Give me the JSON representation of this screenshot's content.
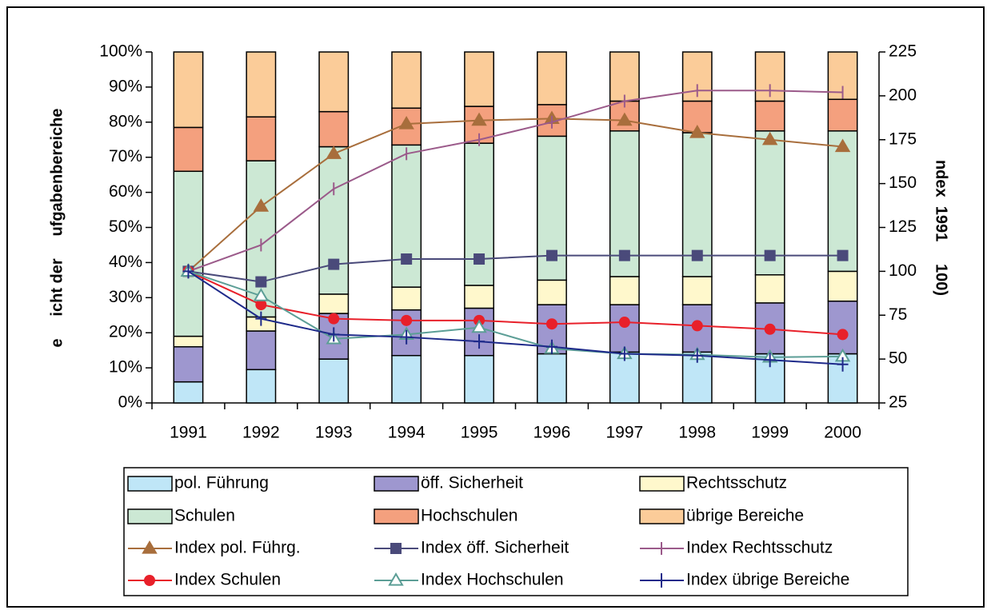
{
  "chart_data": {
    "type": "bar",
    "stacked": true,
    "y_label": "e     icht der     ufgabenbereiche",
    "y2_label": "ndex  1991     100)",
    "categories": [
      "1991",
      "1992",
      "1993",
      "1994",
      "1995",
      "1996",
      "1997",
      "1998",
      "1999",
      "2000"
    ],
    "ylim": [
      0,
      100
    ],
    "yticks": [
      {
        "value": 0,
        "label": "0%"
      },
      {
        "value": 10,
        "label": "10%"
      },
      {
        "value": 20,
        "label": "20%"
      },
      {
        "value": 30,
        "label": "30%"
      },
      {
        "value": 40,
        "label": "40%"
      },
      {
        "value": 50,
        "label": "50%"
      },
      {
        "value": 60,
        "label": "60%"
      },
      {
        "value": 70,
        "label": "70%"
      },
      {
        "value": 80,
        "label": "80%"
      },
      {
        "value": 90,
        "label": "90%"
      },
      {
        "value": 100,
        "label": "100%"
      }
    ],
    "y2lim": [
      25,
      225
    ],
    "y2ticks": [
      25,
      50,
      75,
      100,
      125,
      150,
      175,
      200,
      225
    ],
    "series": [
      {
        "name": "pol. Führung",
        "type": "bar",
        "color": "#bfe6f7",
        "values": [
          6,
          9.5,
          12.5,
          13.5,
          13.5,
          14,
          14.5,
          14.5,
          14,
          14
        ]
      },
      {
        "name": "öff. Sicherheit",
        "type": "bar",
        "color": "#9e97cf",
        "values": [
          10,
          11,
          13,
          13,
          13.5,
          14,
          13.5,
          13.5,
          14.5,
          15
        ]
      },
      {
        "name": "Rechtsschutz",
        "type": "bar",
        "color": "#fff8cc",
        "values": [
          3,
          4,
          5.5,
          6.5,
          6.5,
          7,
          8,
          8,
          8,
          8.5
        ]
      },
      {
        "name": "Schulen",
        "type": "bar",
        "color": "#cce8d4",
        "values": [
          47,
          44.5,
          42,
          40.5,
          40.5,
          41,
          41.5,
          41,
          41,
          40
        ]
      },
      {
        "name": "Hochschulen",
        "type": "bar",
        "color": "#f4a07e",
        "values": [
          12.5,
          12.5,
          10,
          10.5,
          10.5,
          9,
          8.5,
          9,
          8.5,
          9
        ]
      },
      {
        "name": "übrige Bereiche",
        "type": "bar",
        "color": "#fbcc99",
        "values": [
          21.5,
          18.5,
          17,
          16,
          15.5,
          15,
          14,
          14,
          14,
          13.5
        ]
      },
      {
        "name": "Index pol. Führg.",
        "type": "line",
        "axis": "y2",
        "marker": "triangle",
        "color": "#a86e3c",
        "values": [
          100,
          137,
          167,
          184,
          186,
          187,
          186,
          179,
          175,
          171
        ]
      },
      {
        "name": "Index öff. Sicherheit",
        "type": "line",
        "axis": "y2",
        "marker": "square",
        "color": "#4a4a7a",
        "values": [
          100,
          94,
          104,
          107,
          107,
          109,
          109,
          109,
          109,
          109
        ]
      },
      {
        "name": "Index Rechtsschutz",
        "type": "line",
        "axis": "y2",
        "marker": "dash",
        "color": "#9b5a8a",
        "values": [
          100,
          115,
          147,
          167,
          175,
          185,
          197,
          203,
          203,
          202
        ]
      },
      {
        "name": "Index Schulen",
        "type": "line",
        "axis": "y2",
        "marker": "circle",
        "color": "#e8202a",
        "values": [
          100,
          81,
          73,
          72,
          72,
          70,
          71,
          69,
          67,
          64
        ]
      },
      {
        "name": "Index Hochschulen",
        "type": "line",
        "axis": "y2",
        "marker": "open-triangle",
        "color": "#5c9e96",
        "values": [
          100,
          86,
          61.5,
          64,
          68,
          56,
          53,
          52.5,
          51,
          51.5
        ]
      },
      {
        "name": "Index übrige Bereiche",
        "type": "line",
        "axis": "y2",
        "marker": "plus",
        "color": "#1e2a8a",
        "values": [
          100,
          73,
          64,
          62.5,
          60,
          57,
          53,
          52,
          49.5,
          47
        ]
      }
    ]
  }
}
